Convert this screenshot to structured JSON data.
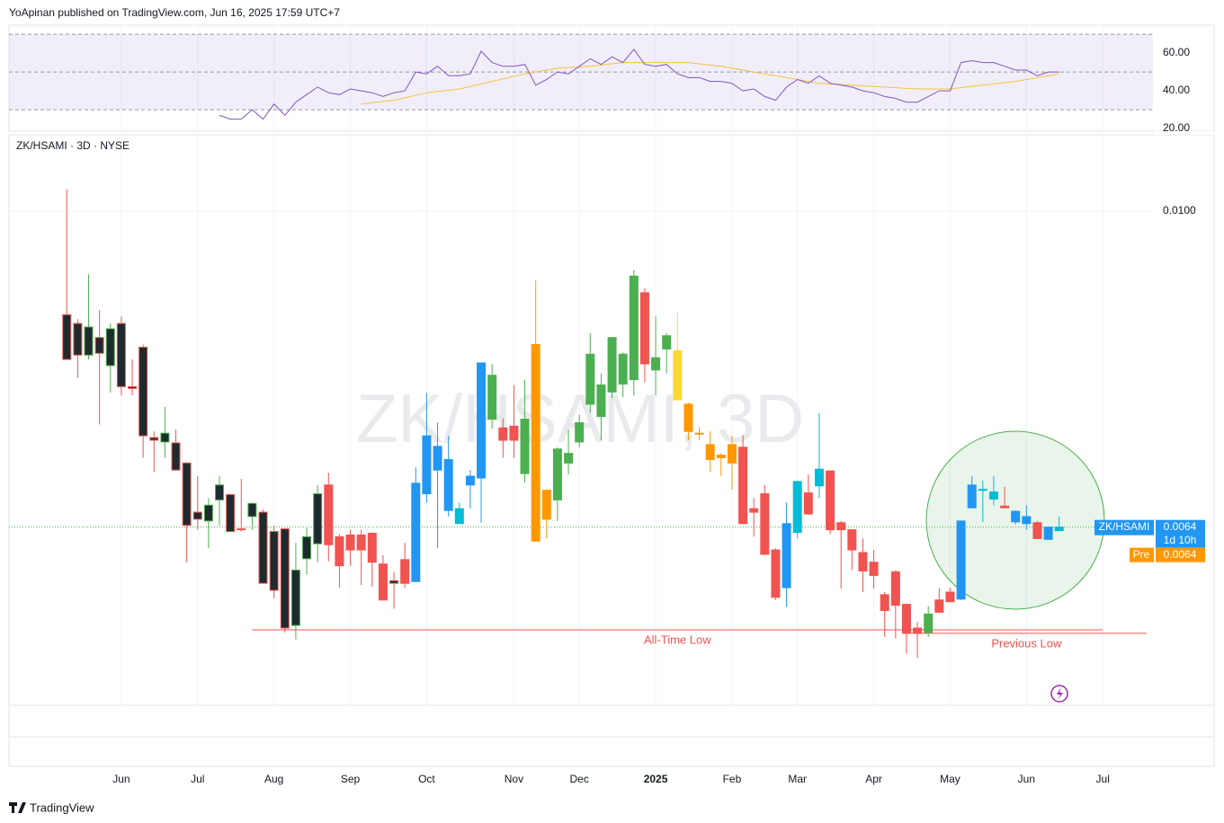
{
  "header": {
    "title": "YoApinan published on TradingView.com, Jun 16, 2025 17:59 UTC+7"
  },
  "footer": {
    "brand": "TradingView"
  },
  "chart_data": {
    "type": "candlestick",
    "title": "ZK/HSAMI · 3D · NYSE",
    "watermark": "ZK/HSAMI, 3D",
    "xlim": [
      -5.3,
      99.6
    ],
    "xticks": [
      {
        "value": 5,
        "label": "Jun"
      },
      {
        "value": 12,
        "label": "Jul"
      },
      {
        "value": 19,
        "label": "Aug"
      },
      {
        "value": 26,
        "label": "Sep"
      },
      {
        "value": 33,
        "label": "Oct"
      },
      {
        "value": 41,
        "label": "Nov"
      },
      {
        "value": 47,
        "label": "Dec"
      },
      {
        "value": 54,
        "label": "2025"
      },
      {
        "value": 61,
        "label": "Feb"
      },
      {
        "value": 67,
        "label": "Mar"
      },
      {
        "value": 74,
        "label": "Apr"
      },
      {
        "value": 81,
        "label": "May"
      },
      {
        "value": 88,
        "label": "Jun"
      },
      {
        "value": 95,
        "label": "Jul"
      }
    ],
    "ylim": [
      0.00437,
      0.01087
    ],
    "yticks": [
      {
        "value": 0.01,
        "label": "0.0100"
      }
    ],
    "grid": true,
    "open": [
      0.00882,
      0.00872,
      0.00836,
      0.00856,
      0.00824,
      0.00872,
      0.008,
      0.00845,
      0.00742,
      0.00737,
      0.00736,
      0.00713,
      0.00657,
      0.00647,
      0.00671,
      0.00677,
      0.00638,
      0.00652,
      0.00657,
      0.00635,
      0.00638,
      0.00528,
      0.00604,
      0.00621,
      0.00688,
      0.00629,
      0.00631,
      0.00631,
      0.00633,
      0.00598,
      0.00579,
      0.00603,
      0.00578,
      0.00678,
      0.00705,
      0.00659,
      0.00644,
      0.00688,
      0.00696,
      0.00763,
      0.00753,
      0.00755,
      0.00701,
      0.00848,
      0.00649,
      0.00671,
      0.00713,
      0.00737,
      0.0078,
      0.00766,
      0.00794,
      0.00803,
      0.00808,
      0.00907,
      0.00819,
      0.00843,
      0.00841,
      0.0078,
      0.00747,
      0.00734,
      0.00722,
      0.00734,
      0.00731,
      0.00661,
      0.00678,
      0.00614,
      0.00571,
      0.00634,
      0.00679,
      0.00687,
      0.00704,
      0.00645,
      0.00637,
      0.00611,
      0.006,
      0.00563,
      0.00589,
      0.00552,
      0.00525,
      0.0052,
      0.00557,
      0.00566,
      0.00558,
      0.00662,
      0.00682,
      0.00672,
      0.00664,
      0.00646,
      0.00644,
      0.00645,
      0.00626,
      0.00636
    ],
    "high": [
      0.01025,
      0.00877,
      0.00928,
      0.00887,
      0.00872,
      0.0088,
      0.00831,
      0.00848,
      0.00749,
      0.00777,
      0.00751,
      0.00714,
      0.00698,
      0.00673,
      0.00698,
      0.00678,
      0.00695,
      0.00668,
      0.0066,
      0.00642,
      0.00639,
      0.00622,
      0.00639,
      0.00688,
      0.00702,
      0.00632,
      0.00637,
      0.00637,
      0.00634,
      0.00608,
      0.00589,
      0.00622,
      0.00708,
      0.00793,
      0.00759,
      0.00744,
      0.00668,
      0.00705,
      0.00827,
      0.00826,
      0.00764,
      0.00802,
      0.00808,
      0.00921,
      0.00683,
      0.00731,
      0.00751,
      0.00768,
      0.00861,
      0.00815,
      0.00856,
      0.00839,
      0.00933,
      0.00912,
      0.0088,
      0.00861,
      0.00884,
      0.00782,
      0.00754,
      0.00749,
      0.00724,
      0.00744,
      0.00745,
      0.00673,
      0.00688,
      0.00616,
      0.00668,
      0.00693,
      0.007,
      0.0077,
      0.00704,
      0.00647,
      0.00637,
      0.00627,
      0.00614,
      0.00566,
      0.00591,
      0.00553,
      0.00532,
      0.0055,
      0.00571,
      0.00571,
      0.00647,
      0.00698,
      0.00693,
      0.00698,
      0.00686,
      0.00659,
      0.00665,
      0.00647,
      0.0064,
      0.00652
    ],
    "low": [
      0.00831,
      0.0081,
      0.00831,
      0.00757,
      0.00793,
      0.0079,
      0.0079,
      0.00719,
      0.00703,
      0.00719,
      0.00705,
      0.006,
      0.00637,
      0.00616,
      0.00642,
      0.00635,
      0.00635,
      0.00637,
      0.00576,
      0.00559,
      0.0052,
      0.00512,
      0.00586,
      0.006,
      0.00601,
      0.00571,
      0.00596,
      0.00574,
      0.00572,
      0.00557,
      0.00547,
      0.00571,
      0.00578,
      0.00668,
      0.00616,
      0.00652,
      0.00644,
      0.00661,
      0.00645,
      0.00752,
      0.00719,
      0.00719,
      0.00691,
      0.00624,
      0.00627,
      0.00647,
      0.007,
      0.00731,
      0.0077,
      0.00739,
      0.00787,
      0.00788,
      0.0079,
      0.00805,
      0.0079,
      0.00815,
      0.00785,
      0.00739,
      0.00739,
      0.00703,
      0.00698,
      0.00683,
      0.00644,
      0.00629,
      0.00608,
      0.00557,
      0.00549,
      0.00627,
      0.00654,
      0.00673,
      0.00632,
      0.0057,
      0.00591,
      0.00566,
      0.0057,
      0.00515,
      0.00513,
      0.00496,
      0.00491,
      0.00515,
      0.00543,
      0.00555,
      0.00557,
      0.00662,
      0.00646,
      0.00665,
      0.00662,
      0.00643,
      0.00637,
      0.00627,
      0.00626,
      0.00636
    ],
    "close": [
      0.00831,
      0.00836,
      0.00868,
      0.00838,
      0.00866,
      0.008,
      0.00798,
      0.00744,
      0.00739,
      0.00747,
      0.00705,
      0.00642,
      0.00649,
      0.00665,
      0.00688,
      0.00635,
      0.00637,
      0.00667,
      0.00576,
      0.00568,
      0.00525,
      0.00591,
      0.00629,
      0.00678,
      0.0062,
      0.00596,
      0.00614,
      0.00614,
      0.006,
      0.00557,
      0.00576,
      0.00576,
      0.0069,
      0.00744,
      0.00732,
      0.00717,
      0.00661,
      0.00698,
      0.00827,
      0.00813,
      0.00739,
      0.00739,
      0.00763,
      0.00624,
      0.00682,
      0.00729,
      0.00724,
      0.00759,
      0.00837,
      0.00802,
      0.00856,
      0.00837,
      0.00926,
      0.00826,
      0.00833,
      0.00858,
      0.00785,
      0.00749,
      0.00746,
      0.00717,
      0.00719,
      0.00713,
      0.00644,
      0.00657,
      0.00609,
      0.0056,
      0.00644,
      0.00692,
      0.00655,
      0.00706,
      0.00637,
      0.00637,
      0.00614,
      0.0059,
      0.00585,
      0.00545,
      0.00551,
      0.00519,
      0.00519,
      0.00541,
      0.00543,
      0.00555,
      0.00647,
      0.00688,
      0.00683,
      0.0068,
      0.00662,
      0.00658,
      0.00652,
      0.00627,
      0.0064,
      0.0064
    ],
    "colors": [
      "#1e2b2e",
      "#1e2b2e",
      "#1e2b2e",
      "#1e2b2e",
      "#1e2b2e",
      "#1e2b2e",
      "#1e2b2e",
      "#1e2b2e",
      "#1e2b2e",
      "#1e2b2e",
      "#1e2b2e",
      "#1e2b2e",
      "#1e2b2e",
      "#1e2b2e",
      "#1e2b2e",
      "#1e2b2e",
      "#1e2b2e",
      "#1e2b2e",
      "#1e2b2e",
      "#1e2b2e",
      "#1e2b2e",
      "#1e2b2e",
      "#1e2b2e",
      "#1e2b2e",
      "#f05350",
      "#f05350",
      "#f05350",
      "#f05350",
      "#f05350",
      "#f05350",
      "#1e2b2e",
      "#f05350",
      "#2196f3",
      "#2196f3",
      "#2196f3",
      "#2196f3",
      "#00bcd4",
      "#2196f3",
      "#2196f3",
      "#4caf50",
      "#f05350",
      "#f05350",
      "#4caf50",
      "#ff9800",
      "#ff9800",
      "#4caf50",
      "#4caf50",
      "#4caf50",
      "#4caf50",
      "#4caf50",
      "#4caf50",
      "#4caf50",
      "#4caf50",
      "#f05350",
      "#4caf50",
      "#4caf50",
      "#fdd835",
      "#ff9800",
      "#ff9800",
      "#ff9800",
      "#ff9800",
      "#ff9800",
      "#f05350",
      "#f05350",
      "#f05350",
      "#f05350",
      "#2196f3",
      "#00bcd4",
      "#f05350",
      "#00bcd4",
      "#f05350",
      "#f05350",
      "#f05350",
      "#f05350",
      "#f05350",
      "#f05350",
      "#f05350",
      "#f05350",
      "#f05350",
      "#4caf50",
      "#f05350",
      "#f05350",
      "#2196f3",
      "#2196f3",
      "#00bcd4",
      "#00bcd4",
      "#f05350",
      "#2196f3",
      "#2196f3",
      "#f05350",
      "#2196f3",
      "#00bcd4"
    ],
    "last_price": {
      "symbol": "ZK/HSAMI",
      "value": 0.0064,
      "countdown": "1d 10h",
      "color": "#2196f3"
    },
    "pre_market": {
      "label": "Pre",
      "value": 0.0064,
      "color": "#ff9800"
    },
    "annotations": [
      {
        "text": "All-Time Low",
        "value": 0.00523,
        "x_range": [
          17,
          95
        ]
      },
      {
        "text": "Previous Low",
        "value": 0.00519,
        "x_range": [
          77,
          99
        ]
      }
    ],
    "rsi": {
      "ylim": [
        18.6,
        74.8
      ],
      "yticks": [
        {
          "value": 60,
          "label": "60.00"
        },
        {
          "value": 40,
          "label": "40.00"
        },
        {
          "value": 20,
          "label": "20.00"
        }
      ],
      "levels": [
        70,
        50,
        30
      ],
      "color": "#7e57c2",
      "values": [
        null,
        null,
        null,
        null,
        null,
        null,
        null,
        null,
        null,
        null,
        null,
        null,
        null,
        null,
        27,
        25,
        25,
        30,
        25,
        33,
        27,
        34,
        38,
        42,
        39,
        38,
        41,
        40,
        39,
        37,
        39,
        40,
        50,
        49,
        53,
        48,
        48,
        49,
        61,
        55,
        53,
        53,
        54,
        43,
        46,
        50,
        49,
        53,
        57,
        54,
        58,
        55,
        62,
        54,
        53,
        54,
        49,
        47,
        47,
        45,
        45,
        44,
        40,
        41,
        37,
        35,
        42,
        46,
        44,
        48,
        44,
        43,
        42,
        40,
        39,
        37,
        36,
        34,
        34,
        37,
        40,
        40,
        55,
        56,
        55,
        55,
        53,
        51,
        51,
        48,
        50,
        50
      ],
      "ma": {
        "color": "#f5c242",
        "x": [
          27,
          30,
          33,
          36,
          39,
          42,
          45,
          48,
          51,
          54,
          57,
          60,
          63,
          66,
          69,
          72,
          75,
          78,
          81,
          84,
          87,
          90,
          91
        ],
        "values": [
          33,
          35,
          39,
          41,
          45,
          49,
          52,
          53,
          55,
          55,
          55,
          53,
          50,
          47,
          44,
          43,
          42,
          41,
          41,
          43,
          45,
          48,
          49
        ]
      }
    }
  }
}
